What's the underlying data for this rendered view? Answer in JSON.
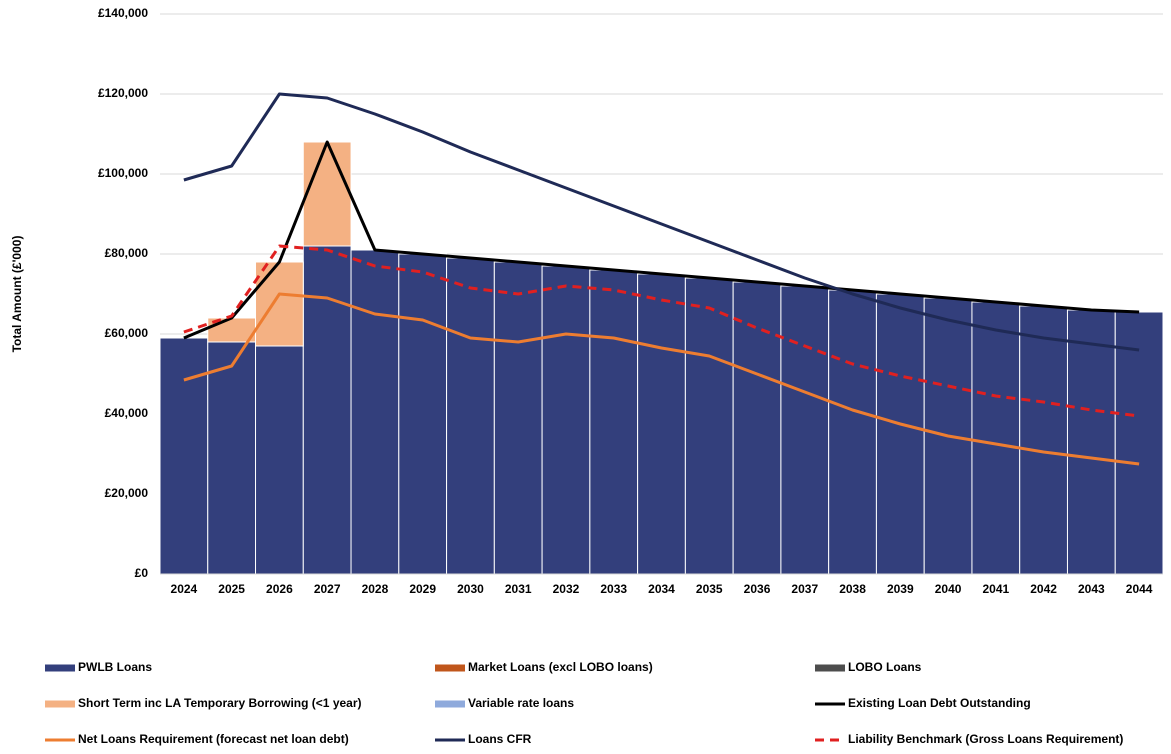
{
  "chart_data": {
    "type": "combo",
    "y_label": "Total Amount (£'000)",
    "categories": [
      "2024",
      "2025",
      "2026",
      "2027",
      "2028",
      "2029",
      "2030",
      "2031",
      "2032",
      "2033",
      "2034",
      "2035",
      "2036",
      "2037",
      "2038",
      "2039",
      "2040",
      "2041",
      "2042",
      "2043",
      "2044"
    ],
    "ylim": [
      0,
      140000
    ],
    "yticks": [
      {
        "value": 0,
        "label": "£0"
      },
      {
        "value": 20000,
        "label": "£20,000"
      },
      {
        "value": 40000,
        "label": "£40,000"
      },
      {
        "value": 60000,
        "label": "£60,000"
      },
      {
        "value": 80000,
        "label": "£80,000"
      },
      {
        "value": 100000,
        "label": "£100,000"
      },
      {
        "value": 120000,
        "label": "£120,000"
      },
      {
        "value": 140000,
        "label": "£140,000"
      }
    ],
    "grid": true,
    "series": [
      {
        "name": "PWLB Loans",
        "kind": "bar",
        "color": "#333f7c",
        "values": [
          59000,
          58000,
          57000,
          82000,
          81000,
          80000,
          79000,
          78000,
          77000,
          76000,
          75000,
          74000,
          73000,
          72000,
          71000,
          70000,
          69000,
          68000,
          67000,
          66000,
          65500
        ]
      },
      {
        "name": "Market Loans (excl LOBO loans)",
        "kind": "bar",
        "color": "#c0561b",
        "values": [
          0,
          0,
          0,
          0,
          0,
          0,
          0,
          0,
          0,
          0,
          0,
          0,
          0,
          0,
          0,
          0,
          0,
          0,
          0,
          0,
          0
        ]
      },
      {
        "name": "LOBO Loans",
        "kind": "bar",
        "color": "#4d4d4d",
        "values": [
          0,
          0,
          0,
          0,
          0,
          0,
          0,
          0,
          0,
          0,
          0,
          0,
          0,
          0,
          0,
          0,
          0,
          0,
          0,
          0,
          0
        ]
      },
      {
        "name": "Short Term inc LA Temporary Borrowing (<1 year)",
        "kind": "bar",
        "color": "#f4b183",
        "values": [
          0,
          6000,
          21000,
          26000,
          0,
          0,
          0,
          0,
          0,
          0,
          0,
          0,
          0,
          0,
          0,
          0,
          0,
          0,
          0,
          0,
          0
        ]
      },
      {
        "name": "Variable rate loans",
        "kind": "bar",
        "color": "#8faadc",
        "values": [
          0,
          0,
          0,
          0,
          0,
          0,
          0,
          0,
          0,
          0,
          0,
          0,
          0,
          0,
          0,
          0,
          0,
          0,
          0,
          0,
          0
        ]
      },
      {
        "name": "Existing Loan Debt Outstanding",
        "kind": "line",
        "color": "#000000",
        "values": [
          59000,
          64000,
          78000,
          108000,
          81000,
          80000,
          79000,
          78000,
          77000,
          76000,
          75000,
          74000,
          73000,
          72000,
          71000,
          70000,
          69000,
          68000,
          67000,
          66000,
          65500
        ]
      },
      {
        "name": "Net Loans Requirement (forecast net loan debt)",
        "kind": "line",
        "color": "#ed7d31",
        "values": [
          48500,
          52000,
          70000,
          69000,
          65000,
          63500,
          59000,
          58000,
          60000,
          59000,
          56500,
          54500,
          50000,
          45500,
          41000,
          37500,
          34500,
          32500,
          30500,
          29000,
          27500
        ]
      },
      {
        "name": "Loans CFR",
        "kind": "line",
        "color": "#1f2a56",
        "values": [
          98500,
          102000,
          120000,
          119000,
          115000,
          110500,
          105500,
          101000,
          96500,
          92000,
          87500,
          83000,
          78500,
          74000,
          70000,
          66500,
          63500,
          61000,
          59000,
          57500,
          56000
        ]
      },
      {
        "name": "Liability Benchmark (Gross Loans Requirement)",
        "kind": "line",
        "dashed": true,
        "color": "#e02020",
        "values": [
          60500,
          64500,
          82000,
          81000,
          77000,
          75500,
          71500,
          70000,
          72000,
          71000,
          68500,
          66500,
          61500,
          57000,
          52500,
          49500,
          47000,
          44500,
          43000,
          41000,
          39500
        ]
      }
    ]
  }
}
